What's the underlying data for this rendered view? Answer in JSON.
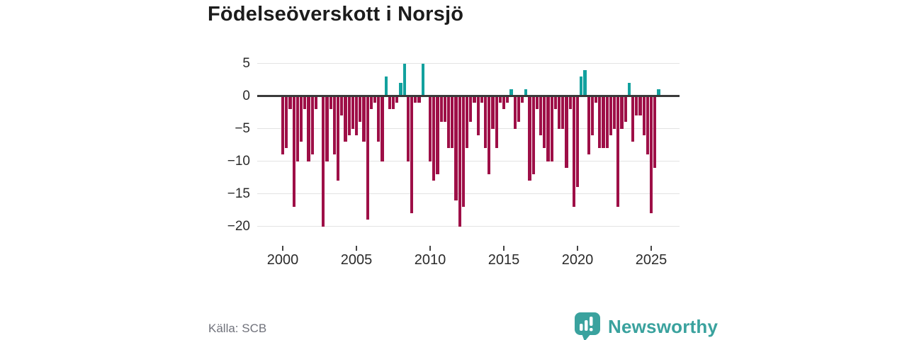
{
  "title": "Födelseöverskott i Norsjö",
  "source": "Källa: SCB",
  "brand": {
    "name": "Newsworthy",
    "icon": "bar-chart-speech-bubble-icon",
    "color": "#3aa29e"
  },
  "chart_data": {
    "type": "bar",
    "title": "Födelseöverskott i Norsjö",
    "frequency": "quarterly",
    "start_period": "2000-Q1",
    "end_period": "2025-Q3",
    "ylim": [
      -20,
      5
    ],
    "grid": "horizontal",
    "legend": "none",
    "colors": {
      "negative": "#9e0f47",
      "positive": "#12a19e"
    },
    "y_ticks": [
      {
        "v": 5,
        "label": "5"
      },
      {
        "v": 0,
        "label": "0"
      },
      {
        "v": -5,
        "label": "−5"
      },
      {
        "v": -10,
        "label": "−10"
      },
      {
        "v": -15,
        "label": "−15"
      },
      {
        "v": -20,
        "label": "−20"
      }
    ],
    "x_ticks": [
      {
        "year_offset": 0,
        "label": "2000"
      },
      {
        "year_offset": 5,
        "label": "2005"
      },
      {
        "year_offset": 10,
        "label": "2010"
      },
      {
        "year_offset": 15,
        "label": "2015"
      },
      {
        "year_offset": 20,
        "label": "2020"
      },
      {
        "year_offset": 25,
        "label": "2025"
      }
    ],
    "values": [
      -9,
      -8,
      -2,
      -17,
      -10,
      -7,
      -2,
      -10,
      -9,
      -2,
      0,
      -20,
      -10,
      -2,
      -9,
      -13,
      -3,
      -7,
      -6,
      -5,
      -6,
      -4,
      -7,
      -19,
      -2,
      -1,
      -7,
      -10,
      3,
      -2,
      -2,
      -1,
      2,
      5,
      -10,
      -18,
      -1,
      -1,
      5,
      0,
      -10,
      -13,
      -12,
      -4,
      -4,
      -8,
      -8,
      -16,
      -20,
      -17,
      -8,
      -4,
      -1,
      -6,
      -1,
      -8,
      -12,
      -5,
      -8,
      -1,
      -2,
      -1,
      1,
      -5,
      -4,
      -1,
      1,
      -13,
      -12,
      -2,
      -6,
      -8,
      -10,
      -10,
      -2,
      -5,
      -5,
      -11,
      -2,
      -17,
      -14,
      3,
      4,
      -9,
      -6,
      -1,
      -8,
      -8,
      -8,
      -6,
      -5,
      -17,
      -5,
      -4,
      2,
      -7,
      -3,
      -3,
      -6,
      -9,
      -18,
      -11,
      1
    ]
  }
}
